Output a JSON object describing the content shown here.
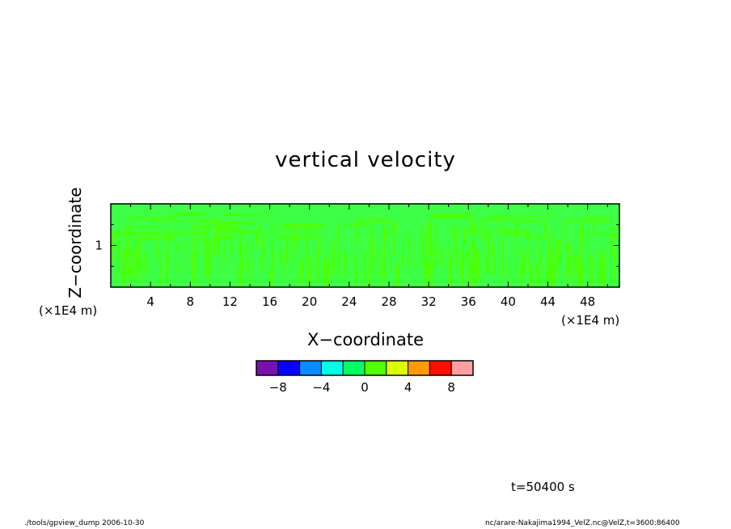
{
  "chart_data": {
    "type": "heatmap",
    "title": "vertical velocity",
    "xlabel": "X−coordinate",
    "ylabel": "Z−coordinate",
    "x_unit": "(×1E4 m)",
    "y_unit": "(×1E4 m)",
    "xlim": [
      0,
      51.2
    ],
    "ylim": [
      0,
      2
    ],
    "x_ticks": [
      4,
      8,
      12,
      16,
      20,
      24,
      28,
      32,
      36,
      40,
      44,
      48
    ],
    "x_tick_labels": [
      "4",
      "8",
      "12",
      "16",
      "20",
      "24",
      "28",
      "32",
      "36",
      "40",
      "44",
      "48"
    ],
    "y_ticks": [
      1
    ],
    "y_tick_labels": [
      "1"
    ],
    "field_summary": "values mostly between -2 and 2 (bins -2–0 and 0–2) with streaky vertical structure",
    "colorbar": {
      "levels": [
        -10,
        -8,
        -6,
        -4,
        -2,
        0,
        2,
        4,
        6,
        8,
        10
      ],
      "colors": [
        "#7a0fb0",
        "#0a00ff",
        "#0a8cff",
        "#00ffe6",
        "#00ff64",
        "#50ff00",
        "#dcff00",
        "#ff9a00",
        "#ff0f00",
        "#ffa0a0"
      ],
      "tick_values": [
        -8,
        -4,
        0,
        4,
        8
      ],
      "tick_labels": [
        "−8",
        "−4",
        "0",
        "4",
        "8"
      ]
    }
  },
  "annotations": {
    "time": "t=50400 s",
    "footer_left": "./tools/gpview_dump   2006-10-30",
    "footer_right": "nc/arare-Nakajima1994_VelZ.nc@VelZ,t=3600:86400"
  }
}
